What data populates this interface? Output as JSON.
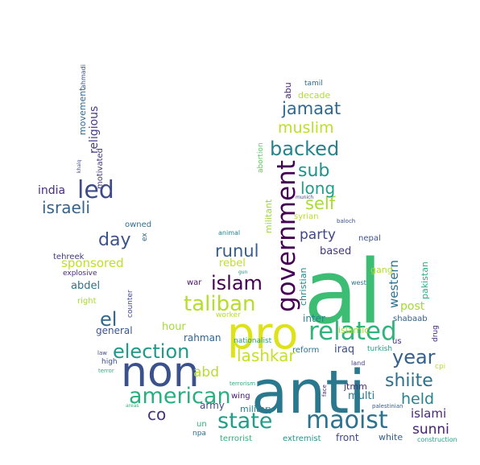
{
  "words": [
    {
      "text": "anti",
      "color": "#2a788e"
    },
    {
      "text": "al",
      "color": "#3dbc74"
    },
    {
      "text": "pro",
      "color": "#dde318"
    },
    {
      "text": "non",
      "color": "#3b518b"
    },
    {
      "text": "government",
      "color": "#440154"
    },
    {
      "text": "related",
      "color": "#2fb47c"
    },
    {
      "text": "maoist",
      "color": "#2c728e"
    },
    {
      "text": "state",
      "color": "#1f9e89"
    },
    {
      "text": "american",
      "color": "#29af7f"
    },
    {
      "text": "taliban",
      "color": "#b5de2b"
    },
    {
      "text": "election",
      "color": "#1f9a8a"
    },
    {
      "text": "backed",
      "color": "#25838e"
    },
    {
      "text": "led",
      "color": "#3e4a89"
    },
    {
      "text": "islam",
      "color": "#440154"
    },
    {
      "text": "year",
      "color": "#35608d"
    },
    {
      "text": "shiite",
      "color": "#2d708e"
    },
    {
      "text": "lashkar",
      "color": "#c8e020"
    },
    {
      "text": "runul",
      "color": "#365c8d"
    },
    {
      "text": "jamaat",
      "color": "#31688e"
    },
    {
      "text": "muslim",
      "color": "#bddf26"
    },
    {
      "text": "sub",
      "color": "#21918c"
    },
    {
      "text": "israeli",
      "color": "#33638d"
    },
    {
      "text": "day",
      "color": "#3b528b"
    },
    {
      "text": "el",
      "color": "#31688e"
    },
    {
      "text": "self",
      "color": "#a8db34"
    },
    {
      "text": "long",
      "color": "#1f9e89"
    },
    {
      "text": "held",
      "color": "#26828e"
    },
    {
      "text": "sunni",
      "color": "#482173"
    },
    {
      "text": "party",
      "color": "#3f4788"
    },
    {
      "text": "abd",
      "color": "#b8de29"
    },
    {
      "text": "co",
      "color": "#46337e"
    },
    {
      "text": "sponsored",
      "color": "#c2df23"
    },
    {
      "text": "islami",
      "color": "#482979"
    },
    {
      "text": "western",
      "color": "#2e6e8e"
    },
    {
      "text": "india",
      "color": "#472e7c"
    },
    {
      "text": "based",
      "color": "#453882"
    },
    {
      "text": "rebel",
      "color": "#c0df25"
    },
    {
      "text": "hour",
      "color": "#a5db36"
    },
    {
      "text": "iraq",
      "color": "#3c508b"
    },
    {
      "text": "post",
      "color": "#a2da37"
    },
    {
      "text": "religious",
      "color": "#443b84"
    },
    {
      "text": "abdel",
      "color": "#2c738e"
    },
    {
      "text": "inter",
      "color": "#25848e"
    },
    {
      "text": "multi",
      "color": "#2a778e"
    },
    {
      "text": "army",
      "color": "#3e4989"
    },
    {
      "text": "front",
      "color": "#404688"
    },
    {
      "text": "militant",
      "color": "#9dd93b"
    },
    {
      "text": "christian",
      "color": "#24868e"
    },
    {
      "text": "rahman",
      "color": "#33638d"
    },
    {
      "text": "jtmm",
      "color": "#462f7c"
    },
    {
      "text": "general",
      "color": "#3a548c"
    },
    {
      "text": "gang",
      "color": "#b0dd2f"
    },
    {
      "text": "islamic",
      "color": "#a0da39"
    },
    {
      "text": "pakistan",
      "color": "#29af7f"
    },
    {
      "text": "abu",
      "color": "#482878"
    },
    {
      "text": "decade",
      "color": "#b2dd2d"
    },
    {
      "text": "movement",
      "color": "#31688e"
    },
    {
      "text": "military",
      "color": "#26818e"
    },
    {
      "text": "white",
      "color": "#355f8d"
    },
    {
      "text": "wing",
      "color": "#482071"
    },
    {
      "text": "war",
      "color": "#471365"
    },
    {
      "text": "tehreek",
      "color": "#453781"
    },
    {
      "text": "extremist",
      "color": "#1f968b"
    },
    {
      "text": "terrorist",
      "color": "#2db27d"
    },
    {
      "text": "right",
      "color": "#a5db36"
    },
    {
      "text": "syrian",
      "color": "#bddf26"
    },
    {
      "text": "owned",
      "color": "#2d708e"
    },
    {
      "text": "motivated",
      "color": "#453882"
    },
    {
      "text": "nepal",
      "color": "#3b528b"
    },
    {
      "text": "shabaab",
      "color": "#35608d"
    },
    {
      "text": "reform",
      "color": "#2c728e"
    },
    {
      "text": "turkish",
      "color": "#1fa187"
    },
    {
      "text": "worker",
      "color": "#b5de2b"
    },
    {
      "text": "nationalist",
      "color": "#1fa088"
    },
    {
      "text": "counter",
      "color": "#3e4989"
    },
    {
      "text": "us",
      "color": "#46327e"
    },
    {
      "text": "drug",
      "color": "#482475"
    },
    {
      "text": "un",
      "color": "#2db27d"
    },
    {
      "text": "npa",
      "color": "#2e6f8e"
    },
    {
      "text": "abortion",
      "color": "#5ec962"
    },
    {
      "text": "tamil",
      "color": "#2e6e8e"
    },
    {
      "text": "construction",
      "color": "#20a386"
    },
    {
      "text": "ex",
      "color": "#31688e"
    },
    {
      "text": "explosive",
      "color": "#472c7a"
    },
    {
      "text": "high",
      "color": "#3d4e8a"
    },
    {
      "text": "west",
      "color": "#2c718e"
    },
    {
      "text": "cpi",
      "color": "#bade28"
    },
    {
      "text": "land",
      "color": "#443a83"
    },
    {
      "text": "law",
      "color": "#3f4889"
    },
    {
      "text": "animal",
      "color": "#26828e"
    },
    {
      "text": "palestinian",
      "color": "#375a8c"
    },
    {
      "text": "face",
      "color": "#482576"
    },
    {
      "text": "terror",
      "color": "#2ab07f"
    },
    {
      "text": "terrorism",
      "color": "#29af7f"
    },
    {
      "text": "baloch",
      "color": "#3b528b"
    },
    {
      "text": "gun",
      "color": "#1f958b"
    },
    {
      "text": "munich",
      "color": "#404688"
    },
    {
      "text": "ahmadi",
      "color": "#3b518b"
    },
    {
      "text": "khalq",
      "color": "#3e4a89"
    },
    {
      "text": "areas",
      "color": "#35b779"
    }
  ]
}
